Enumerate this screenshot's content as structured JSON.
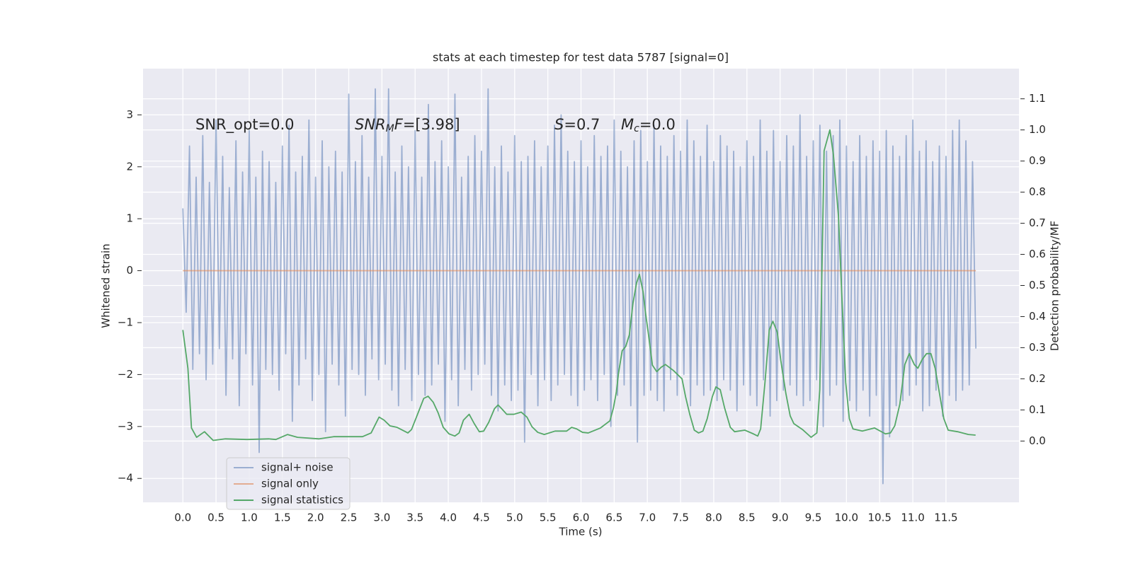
{
  "chart_data": {
    "type": "line",
    "title": "stats at each timestep for test data 5787 [signal=0]",
    "x_label": "Time (s)",
    "y_label": "Whitened strain",
    "y2_label": "Detection probability/MF",
    "xlim": [
      -0.6,
      12.6
    ],
    "ylim": [
      -4.46,
      3.89
    ],
    "y2lim": [
      -0.197,
      1.197
    ],
    "xticks": [
      {
        "value": 0,
        "label": "0.0"
      },
      0.5,
      {
        "value": 1,
        "label": "1.0"
      },
      1.5,
      {
        "value": 2,
        "label": "2.0"
      },
      2.5,
      {
        "value": 3,
        "label": "3.0"
      },
      3.5,
      {
        "value": 4,
        "label": "4.0"
      },
      4.5,
      {
        "value": 5,
        "label": "5.0"
      },
      5.5,
      {
        "value": 6,
        "label": "6.0"
      },
      6.5,
      {
        "value": 7,
        "label": "7.0"
      },
      7.5,
      {
        "value": 8,
        "label": "8.0"
      },
      8.5,
      {
        "value": 9,
        "label": "9.0"
      },
      9.5,
      {
        "value": 10,
        "label": "10.0"
      },
      10.5,
      {
        "value": 11,
        "label": "11.0"
      },
      11.5
    ],
    "yticks": [
      {
        "value": -4,
        "label": "−4"
      },
      {
        "value": -3,
        "label": "−3"
      },
      {
        "value": -2,
        "label": "−2"
      },
      {
        "value": -1,
        "label": "−1"
      },
      0,
      1,
      2,
      3
    ],
    "y2ticks": [
      {
        "value": 0,
        "label": "0.0"
      },
      0.1,
      0.2,
      0.3,
      0.4,
      0.5,
      0.6,
      0.7,
      0.8,
      0.9,
      {
        "value": 1,
        "label": "1.0"
      },
      1.1
    ],
    "grid": true,
    "legend_loc": "lower left",
    "annotations": [
      {
        "parts": [
          {
            "text": "SNR_opt=0.0"
          }
        ]
      },
      {
        "parts": [
          {
            "text": "SNR",
            "style": "italic"
          },
          {
            "text": "M",
            "style": "sub"
          },
          {
            "text": "F",
            "style": "italic"
          },
          {
            "text": "=[3.98]"
          }
        ]
      },
      {
        "parts": [
          {
            "text": "S",
            "style": "italic"
          },
          {
            "text": "=0.7"
          }
        ]
      },
      {
        "parts": [
          {
            "text": "M",
            "style": "italic"
          },
          {
            "text": "c",
            "style": "sub"
          },
          {
            "text": "=0.0"
          }
        ]
      }
    ],
    "series": [
      {
        "name": "signal+ noise",
        "color": "#4c72b0",
        "alpha": 0.5,
        "x": [
          0,
          0.05,
          0.1,
          0.15,
          0.2,
          0.25,
          0.3,
          0.35,
          0.4,
          0.45,
          0.5,
          0.55,
          0.6,
          0.65,
          0.7,
          0.75,
          0.8,
          0.85,
          0.9,
          0.95,
          1,
          1.05,
          1.1,
          1.15,
          1.2,
          1.25,
          1.3,
          1.35,
          1.4,
          1.45,
          1.5,
          1.55,
          1.6,
          1.65,
          1.7,
          1.75,
          1.8,
          1.85,
          1.9,
          1.95,
          2,
          2.05,
          2.1,
          2.15,
          2.2,
          2.25,
          2.3,
          2.35,
          2.4,
          2.45,
          2.5,
          2.55,
          2.6,
          2.65,
          2.7,
          2.75,
          2.8,
          2.85,
          2.9,
          2.95,
          3,
          3.05,
          3.1,
          3.15,
          3.2,
          3.25,
          3.3,
          3.35,
          3.4,
          3.45,
          3.5,
          3.55,
          3.6,
          3.65,
          3.7,
          3.75,
          3.8,
          3.85,
          3.9,
          3.95,
          4,
          4.05,
          4.1,
          4.15,
          4.2,
          4.25,
          4.3,
          4.35,
          4.4,
          4.45,
          4.5,
          4.55,
          4.6,
          4.65,
          4.7,
          4.75,
          4.8,
          4.85,
          4.9,
          4.95,
          5,
          5.05,
          5.1,
          5.15,
          5.2,
          5.25,
          5.3,
          5.35,
          5.4,
          5.45,
          5.5,
          5.55,
          5.6,
          5.65,
          5.7,
          5.75,
          5.8,
          5.85,
          5.9,
          5.95,
          6,
          6.05,
          6.1,
          6.15,
          6.2,
          6.25,
          6.3,
          6.35,
          6.4,
          6.45,
          6.5,
          6.55,
          6.6,
          6.65,
          6.7,
          6.75,
          6.8,
          6.85,
          6.9,
          6.95,
          7,
          7.05,
          7.1,
          7.15,
          7.2,
          7.25,
          7.3,
          7.35,
          7.4,
          7.45,
          7.5,
          7.55,
          7.6,
          7.65,
          7.7,
          7.75,
          7.8,
          7.85,
          7.9,
          7.95,
          8,
          8.05,
          8.1,
          8.15,
          8.2,
          8.25,
          8.3,
          8.35,
          8.4,
          8.45,
          8.5,
          8.55,
          8.6,
          8.65,
          8.7,
          8.75,
          8.8,
          8.85,
          8.9,
          8.95,
          9,
          9.05,
          9.1,
          9.15,
          9.2,
          9.25,
          9.3,
          9.35,
          9.4,
          9.45,
          9.5,
          9.55,
          9.6,
          9.65,
          9.7,
          9.75,
          9.8,
          9.85,
          9.9,
          9.95,
          10,
          10.05,
          10.1,
          10.15,
          10.2,
          10.25,
          10.3,
          10.35,
          10.4,
          10.45,
          10.5,
          10.55,
          10.6,
          10.65,
          10.7,
          10.75,
          10.8,
          10.85,
          10.9,
          10.95,
          11,
          11.05,
          11.1,
          11.15,
          11.2,
          11.25,
          11.3,
          11.35,
          11.4,
          11.45,
          11.5,
          11.55,
          11.6,
          11.65,
          11.7,
          11.75,
          11.8,
          11.85,
          11.9,
          11.95
        ],
        "values": [
          1.2,
          -0.8,
          2.4,
          -1.9,
          1.8,
          -1.6,
          2.6,
          -2.1,
          1.7,
          -1.8,
          2.9,
          -1.5,
          2.2,
          -2.4,
          1.6,
          -1.7,
          2.5,
          -2.6,
          1.9,
          -1.6,
          2.7,
          -2.2,
          1.8,
          -3.5,
          2.3,
          -1.9,
          2.1,
          -2.0,
          1.7,
          -2.3,
          2.4,
          -1.6,
          2.8,
          -2.9,
          1.9,
          -2.2,
          2.2,
          -1.7,
          2.9,
          -2.5,
          1.8,
          -2.0,
          2.5,
          -3.1,
          2.0,
          -1.8,
          2.3,
          -2.2,
          1.9,
          -2.8,
          3.4,
          -1.9,
          2.1,
          -2.0,
          2.6,
          -2.4,
          1.8,
          -1.7,
          3.5,
          -2.1,
          2.2,
          -1.8,
          3.5,
          -2.3,
          1.9,
          -2.6,
          2.4,
          -1.9,
          2.0,
          -2.5,
          2.7,
          -2.0,
          1.8,
          -2.4,
          3.2,
          -2.2,
          2.1,
          -1.8,
          2.5,
          -2.9,
          2.0,
          -2.1,
          3.4,
          -2.6,
          1.8,
          -1.9,
          2.2,
          -2.3,
          2.6,
          -2.0,
          2.3,
          -1.8,
          3.5,
          -2.4,
          2.0,
          -2.7,
          2.4,
          -2.2,
          1.9,
          -2.5,
          2.6,
          -2.3,
          2.1,
          -3.3,
          2.2,
          -2.0,
          2.5,
          -2.6,
          2.0,
          -2.1,
          2.4,
          -2.5,
          2.8,
          -2.2,
          3.0,
          -2.0,
          2.3,
          -2.4,
          2.1,
          -2.6,
          2.5,
          -2.3,
          2.0,
          -2.1,
          2.6,
          -2.5,
          2.2,
          -2.0,
          2.4,
          -3.0,
          2.9,
          -2.4,
          2.3,
          -2.2,
          2.0,
          -2.6,
          2.5,
          -3.3,
          2.7,
          -2.4,
          2.1,
          -2.3,
          2.8,
          -2.5,
          2.4,
          -2.7,
          2.2,
          -2.1,
          2.6,
          -2.4,
          2.3,
          -2.0,
          2.9,
          -2.6,
          2.5,
          -2.2,
          2.2,
          -2.4,
          2.8,
          -2.3,
          2.1,
          -2.5,
          2.6,
          -2.1,
          2.4,
          -2.3,
          2.3,
          -2.7,
          2.0,
          -2.2,
          2.5,
          -2.4,
          2.2,
          -2.6,
          2.9,
          -2.1,
          2.3,
          -2.8,
          2.7,
          -2.5,
          2.1,
          -2.3,
          2.6,
          -2.2,
          2.4,
          -2.4,
          3.0,
          -2.6,
          2.2,
          -2.5,
          2.5,
          -2.1,
          2.8,
          -3.0,
          2.3,
          -2.4,
          2.6,
          -2.2,
          2.9,
          -2.9,
          2.4,
          -2.5,
          2.1,
          -2.7,
          2.6,
          -2.3,
          2.2,
          -2.8,
          2.5,
          -2.4,
          2.3,
          -4.1,
          2.7,
          -3.2,
          2.4,
          -2.6,
          2.2,
          -2.5,
          2.6,
          -2.4,
          2.9,
          -2.2,
          2.3,
          -2.7,
          2.5,
          -2.6,
          2.1,
          -2.3,
          2.4,
          -2.8,
          2.2,
          -2.4,
          2.7,
          -2.5,
          2.9,
          -2.3,
          2.5,
          -2.2,
          2.1,
          -1.5
        ]
      },
      {
        "name": "signal only",
        "color": "#dd8452",
        "alpha": 0.6,
        "x": [
          0,
          11.95
        ],
        "values": [
          0,
          0
        ]
      },
      {
        "name": "signal statistics",
        "color": "#55a868",
        "alpha": 1,
        "axis": "y2",
        "x": [
          0,
          0.076,
          0.13,
          0.207,
          0.326,
          0.457,
          0.641,
          0.967,
          1.293,
          1.402,
          1.576,
          1.728,
          2.054,
          2.272,
          2.489,
          2.707,
          2.837,
          2.957,
          3.033,
          3.12,
          3.228,
          3.391,
          3.446,
          3.533,
          3.63,
          3.696,
          3.772,
          3.848,
          3.924,
          4.011,
          4.098,
          4.163,
          4.228,
          4.315,
          4.391,
          4.467,
          4.533,
          4.609,
          4.696,
          4.75,
          4.804,
          4.88,
          4.989,
          5.098,
          5.185,
          5.261,
          5.348,
          5.446,
          5.609,
          5.783,
          5.859,
          5.935,
          6.022,
          6.109,
          6.293,
          6.435,
          6.489,
          6.533,
          6.565,
          6.62,
          6.674,
          6.728,
          6.783,
          6.837,
          6.88,
          6.935,
          6.967,
          7.022,
          7.076,
          7.141,
          7.207,
          7.272,
          7.391,
          7.522,
          7.576,
          7.641,
          7.707,
          7.772,
          7.837,
          7.902,
          7.978,
          8.033,
          8.098,
          8.163,
          8.25,
          8.315,
          8.467,
          8.598,
          8.663,
          8.707,
          8.772,
          8.837,
          8.891,
          8.957,
          9.011,
          9.087,
          9.152,
          9.207,
          9.337,
          9.467,
          9.554,
          9.598,
          9.663,
          9.75,
          9.804,
          9.88,
          9.935,
          9.989,
          10.043,
          10.098,
          10.239,
          10.424,
          10.587,
          10.663,
          10.728,
          10.804,
          10.88,
          10.946,
          11.022,
          11.076,
          11.141,
          11.207,
          11.272,
          11.337,
          11.402,
          11.467,
          11.533,
          11.674,
          11.837,
          11.946
        ],
        "values": [
          0.357,
          0.234,
          0.042,
          0.012,
          0.03,
          0.002,
          0.007,
          0.005,
          0.007,
          0.005,
          0.021,
          0.012,
          0.007,
          0.014,
          0.014,
          0.014,
          0.026,
          0.077,
          0.067,
          0.049,
          0.044,
          0.026,
          0.037,
          0.084,
          0.137,
          0.144,
          0.125,
          0.09,
          0.044,
          0.023,
          0.016,
          0.026,
          0.067,
          0.086,
          0.056,
          0.03,
          0.032,
          0.06,
          0.104,
          0.116,
          0.104,
          0.086,
          0.086,
          0.093,
          0.077,
          0.046,
          0.028,
          0.021,
          0.032,
          0.032,
          0.044,
          0.039,
          0.028,
          0.026,
          0.042,
          0.065,
          0.107,
          0.158,
          0.218,
          0.29,
          0.304,
          0.341,
          0.443,
          0.508,
          0.536,
          0.48,
          0.42,
          0.334,
          0.244,
          0.223,
          0.237,
          0.246,
          0.227,
          0.2,
          0.142,
          0.084,
          0.035,
          0.026,
          0.032,
          0.072,
          0.142,
          0.174,
          0.165,
          0.107,
          0.044,
          0.03,
          0.035,
          0.023,
          0.016,
          0.039,
          0.188,
          0.357,
          0.385,
          0.35,
          0.258,
          0.153,
          0.081,
          0.056,
          0.037,
          0.012,
          0.026,
          0.165,
          0.933,
          1.0,
          0.919,
          0.722,
          0.443,
          0.188,
          0.072,
          0.039,
          0.032,
          0.042,
          0.023,
          0.026,
          0.049,
          0.118,
          0.246,
          0.281,
          0.246,
          0.234,
          0.262,
          0.281,
          0.281,
          0.234,
          0.153,
          0.072,
          0.035,
          0.03,
          0.021,
          0.019
        ]
      }
    ]
  }
}
